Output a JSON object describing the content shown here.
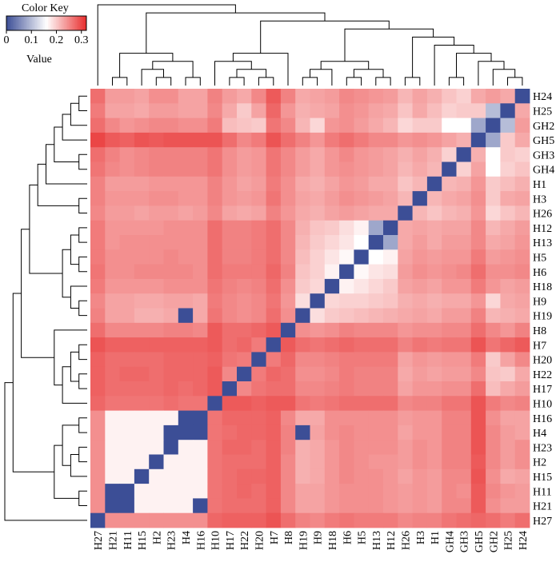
{
  "chart_data": {
    "type": "heatmap",
    "title": "",
    "color_key": {
      "title": "Color Key",
      "xlabel": "Value",
      "ticks": [
        "0",
        "0.1",
        "0.2",
        "0.3"
      ],
      "range": [
        0,
        0.32
      ],
      "colors": {
        "low": "#3c4e96",
        "mid": "#ffffff",
        "high": "#e82c2c"
      }
    },
    "col_labels": [
      "H27",
      "H21",
      "H11",
      "H15",
      "H2",
      "H23",
      "H4",
      "H16",
      "H10",
      "H17",
      "H22",
      "H20",
      "H7",
      "H8",
      "H19",
      "H9",
      "H18",
      "H6",
      "H5",
      "H13",
      "H12",
      "H26",
      "H3",
      "H1",
      "GH4",
      "GH3",
      "GH5",
      "GH2",
      "H25",
      "H24"
    ],
    "row_labels": [
      "H24",
      "H25",
      "GH2",
      "GH5",
      "GH3",
      "GH4",
      "H1",
      "H3",
      "H26",
      "H12",
      "H13",
      "H5",
      "H6",
      "H18",
      "H9",
      "H19",
      "H8",
      "H7",
      "H20",
      "H22",
      "H17",
      "H10",
      "H16",
      "H4",
      "H23",
      "H2",
      "H15",
      "H11",
      "H21",
      "H27"
    ],
    "values": [
      [
        0.27,
        0.235,
        0.235,
        0.23,
        0.245,
        0.245,
        0.23,
        0.23,
        0.255,
        0.235,
        0.225,
        0.25,
        0.285,
        0.255,
        0.225,
        0.23,
        0.235,
        0.25,
        0.245,
        0.24,
        0.235,
        0.215,
        0.23,
        0.22,
        0.205,
        0.195,
        0.225,
        0.235,
        0.225,
        0.0
      ],
      [
        0.26,
        0.23,
        0.23,
        0.225,
        0.235,
        0.235,
        0.23,
        0.23,
        0.25,
        0.225,
        0.2,
        0.23,
        0.275,
        0.24,
        0.22,
        0.225,
        0.23,
        0.245,
        0.24,
        0.23,
        0.225,
        0.205,
        0.225,
        0.21,
        0.195,
        0.2,
        0.2,
        0.1,
        0.0,
        0.225
      ],
      [
        0.27,
        0.25,
        0.24,
        0.245,
        0.25,
        0.25,
        0.245,
        0.245,
        0.26,
        0.21,
        0.205,
        0.2,
        0.265,
        0.25,
        0.215,
        0.19,
        0.24,
        0.245,
        0.235,
        0.225,
        0.215,
        0.19,
        0.2,
        0.2,
        0.16,
        0.16,
        0.08,
        0.0,
        0.1,
        0.235
      ],
      [
        0.3,
        0.285,
        0.28,
        0.29,
        0.285,
        0.29,
        0.29,
        0.29,
        0.29,
        0.27,
        0.25,
        0.26,
        0.29,
        0.27,
        0.255,
        0.24,
        0.26,
        0.27,
        0.26,
        0.25,
        0.25,
        0.24,
        0.245,
        0.24,
        0.23,
        0.22,
        0.0,
        0.08,
        0.2,
        0.225
      ],
      [
        0.27,
        0.255,
        0.245,
        0.25,
        0.255,
        0.255,
        0.255,
        0.255,
        0.265,
        0.245,
        0.235,
        0.24,
        0.265,
        0.25,
        0.235,
        0.225,
        0.24,
        0.25,
        0.24,
        0.235,
        0.23,
        0.22,
        0.23,
        0.22,
        0.195,
        0.0,
        0.22,
        0.16,
        0.2,
        0.195
      ],
      [
        0.265,
        0.25,
        0.245,
        0.25,
        0.255,
        0.255,
        0.255,
        0.255,
        0.265,
        0.245,
        0.235,
        0.24,
        0.265,
        0.25,
        0.235,
        0.225,
        0.24,
        0.245,
        0.24,
        0.235,
        0.23,
        0.215,
        0.225,
        0.215,
        0.0,
        0.195,
        0.23,
        0.16,
        0.195,
        0.205
      ],
      [
        0.255,
        0.235,
        0.235,
        0.235,
        0.24,
        0.24,
        0.24,
        0.24,
        0.255,
        0.24,
        0.23,
        0.235,
        0.26,
        0.245,
        0.225,
        0.22,
        0.23,
        0.24,
        0.235,
        0.225,
        0.225,
        0.205,
        0.215,
        0.0,
        0.215,
        0.22,
        0.24,
        0.2,
        0.21,
        0.22
      ],
      [
        0.255,
        0.24,
        0.24,
        0.24,
        0.245,
        0.245,
        0.24,
        0.24,
        0.255,
        0.24,
        0.235,
        0.24,
        0.265,
        0.245,
        0.23,
        0.225,
        0.235,
        0.245,
        0.24,
        0.235,
        0.23,
        0.215,
        0.0,
        0.215,
        0.225,
        0.23,
        0.245,
        0.2,
        0.225,
        0.23
      ],
      [
        0.25,
        0.235,
        0.235,
        0.23,
        0.235,
        0.235,
        0.23,
        0.235,
        0.25,
        0.23,
        0.225,
        0.23,
        0.255,
        0.24,
        0.225,
        0.22,
        0.23,
        0.235,
        0.23,
        0.225,
        0.225,
        0.0,
        0.215,
        0.205,
        0.215,
        0.22,
        0.24,
        0.19,
        0.205,
        0.215
      ],
      [
        0.26,
        0.24,
        0.24,
        0.24,
        0.24,
        0.245,
        0.245,
        0.245,
        0.27,
        0.255,
        0.255,
        0.26,
        0.27,
        0.25,
        0.22,
        0.205,
        0.2,
        0.185,
        0.17,
        0.08,
        0.0,
        0.225,
        0.23,
        0.225,
        0.23,
        0.23,
        0.25,
        0.215,
        0.225,
        0.235
      ],
      [
        0.26,
        0.24,
        0.245,
        0.245,
        0.245,
        0.245,
        0.245,
        0.245,
        0.27,
        0.255,
        0.255,
        0.26,
        0.27,
        0.25,
        0.215,
        0.2,
        0.19,
        0.18,
        0.16,
        0.0,
        0.08,
        0.225,
        0.235,
        0.225,
        0.235,
        0.235,
        0.25,
        0.225,
        0.23,
        0.24
      ],
      [
        0.26,
        0.245,
        0.245,
        0.245,
        0.245,
        0.25,
        0.245,
        0.245,
        0.27,
        0.255,
        0.255,
        0.26,
        0.27,
        0.25,
        0.21,
        0.195,
        0.18,
        0.165,
        0.0,
        0.16,
        0.17,
        0.23,
        0.24,
        0.235,
        0.24,
        0.24,
        0.26,
        0.235,
        0.24,
        0.245
      ],
      [
        0.265,
        0.245,
        0.245,
        0.25,
        0.25,
        0.25,
        0.25,
        0.245,
        0.27,
        0.26,
        0.26,
        0.26,
        0.275,
        0.255,
        0.205,
        0.195,
        0.17,
        0.0,
        0.165,
        0.18,
        0.185,
        0.235,
        0.245,
        0.24,
        0.245,
        0.25,
        0.27,
        0.245,
        0.245,
        0.25
      ],
      [
        0.26,
        0.24,
        0.24,
        0.24,
        0.24,
        0.245,
        0.245,
        0.245,
        0.265,
        0.255,
        0.25,
        0.255,
        0.27,
        0.245,
        0.2,
        0.19,
        0.0,
        0.17,
        0.18,
        0.19,
        0.2,
        0.23,
        0.235,
        0.23,
        0.24,
        0.24,
        0.26,
        0.24,
        0.23,
        0.235
      ],
      [
        0.25,
        0.23,
        0.23,
        0.225,
        0.225,
        0.23,
        0.23,
        0.225,
        0.26,
        0.25,
        0.245,
        0.25,
        0.265,
        0.24,
        0.185,
        0.0,
        0.19,
        0.195,
        0.195,
        0.2,
        0.205,
        0.22,
        0.225,
        0.22,
        0.225,
        0.225,
        0.24,
        0.19,
        0.225,
        0.23
      ],
      [
        0.255,
        0.23,
        0.23,
        0.22,
        0.22,
        0.225,
        0.0,
        0.225,
        0.265,
        0.25,
        0.245,
        0.25,
        0.27,
        0.245,
        0.0,
        0.185,
        0.2,
        0.205,
        0.21,
        0.215,
        0.22,
        0.225,
        0.23,
        0.225,
        0.235,
        0.235,
        0.255,
        0.215,
        0.22,
        0.225
      ],
      [
        0.27,
        0.25,
        0.25,
        0.25,
        0.25,
        0.255,
        0.255,
        0.25,
        0.285,
        0.27,
        0.27,
        0.275,
        0.285,
        0.0,
        0.245,
        0.24,
        0.245,
        0.255,
        0.25,
        0.25,
        0.25,
        0.24,
        0.245,
        0.245,
        0.25,
        0.25,
        0.27,
        0.25,
        0.24,
        0.255
      ],
      [
        0.29,
        0.28,
        0.28,
        0.28,
        0.28,
        0.28,
        0.28,
        0.28,
        0.285,
        0.27,
        0.275,
        0.26,
        0.0,
        0.285,
        0.27,
        0.265,
        0.27,
        0.275,
        0.27,
        0.27,
        0.27,
        0.255,
        0.265,
        0.26,
        0.265,
        0.265,
        0.29,
        0.265,
        0.275,
        0.285
      ],
      [
        0.28,
        0.27,
        0.27,
        0.27,
        0.27,
        0.275,
        0.275,
        0.275,
        0.28,
        0.265,
        0.26,
        0.0,
        0.26,
        0.275,
        0.25,
        0.25,
        0.255,
        0.26,
        0.26,
        0.26,
        0.26,
        0.23,
        0.24,
        0.235,
        0.24,
        0.24,
        0.26,
        0.2,
        0.23,
        0.25
      ],
      [
        0.28,
        0.27,
        0.275,
        0.275,
        0.27,
        0.275,
        0.275,
        0.275,
        0.285,
        0.25,
        0.0,
        0.26,
        0.275,
        0.27,
        0.245,
        0.245,
        0.25,
        0.26,
        0.255,
        0.255,
        0.255,
        0.225,
        0.235,
        0.23,
        0.235,
        0.235,
        0.25,
        0.205,
        0.2,
        0.225
      ],
      [
        0.28,
        0.27,
        0.27,
        0.27,
        0.27,
        0.275,
        0.27,
        0.275,
        0.285,
        0.0,
        0.25,
        0.265,
        0.27,
        0.27,
        0.25,
        0.25,
        0.255,
        0.26,
        0.255,
        0.255,
        0.255,
        0.23,
        0.24,
        0.24,
        0.245,
        0.245,
        0.27,
        0.21,
        0.225,
        0.235
      ],
      [
        0.275,
        0.265,
        0.265,
        0.265,
        0.265,
        0.27,
        0.265,
        0.265,
        0.0,
        0.285,
        0.285,
        0.28,
        0.285,
        0.285,
        0.265,
        0.26,
        0.265,
        0.27,
        0.27,
        0.27,
        0.27,
        0.25,
        0.255,
        0.255,
        0.265,
        0.265,
        0.29,
        0.26,
        0.25,
        0.255
      ],
      [
        0.245,
        0.17,
        0.17,
        0.17,
        0.17,
        0.17,
        0.0,
        0.0,
        0.265,
        0.275,
        0.275,
        0.275,
        0.28,
        0.25,
        0.225,
        0.225,
        0.245,
        0.245,
        0.245,
        0.245,
        0.245,
        0.235,
        0.24,
        0.24,
        0.255,
        0.255,
        0.29,
        0.245,
        0.23,
        0.23
      ],
      [
        0.245,
        0.17,
        0.17,
        0.17,
        0.17,
        0.0,
        0.0,
        0.0,
        0.265,
        0.27,
        0.275,
        0.275,
        0.28,
        0.255,
        0.0,
        0.23,
        0.245,
        0.25,
        0.245,
        0.245,
        0.245,
        0.23,
        0.24,
        0.24,
        0.255,
        0.255,
        0.29,
        0.25,
        0.235,
        0.23
      ],
      [
        0.245,
        0.17,
        0.17,
        0.17,
        0.17,
        0.0,
        0.17,
        0.17,
        0.265,
        0.275,
        0.275,
        0.27,
        0.28,
        0.255,
        0.22,
        0.225,
        0.24,
        0.25,
        0.245,
        0.245,
        0.245,
        0.235,
        0.245,
        0.24,
        0.255,
        0.255,
        0.29,
        0.25,
        0.235,
        0.245
      ],
      [
        0.245,
        0.17,
        0.17,
        0.17,
        0.0,
        0.17,
        0.17,
        0.17,
        0.265,
        0.27,
        0.27,
        0.27,
        0.28,
        0.25,
        0.22,
        0.225,
        0.24,
        0.25,
        0.245,
        0.24,
        0.24,
        0.235,
        0.245,
        0.24,
        0.255,
        0.255,
        0.285,
        0.25,
        0.235,
        0.245
      ],
      [
        0.245,
        0.17,
        0.17,
        0.0,
        0.17,
        0.17,
        0.17,
        0.17,
        0.265,
        0.27,
        0.275,
        0.275,
        0.28,
        0.25,
        0.22,
        0.225,
        0.24,
        0.25,
        0.245,
        0.245,
        0.24,
        0.23,
        0.24,
        0.235,
        0.25,
        0.25,
        0.29,
        0.245,
        0.225,
        0.23
      ],
      [
        0.245,
        0.0,
        0.0,
        0.17,
        0.17,
        0.17,
        0.17,
        0.17,
        0.265,
        0.27,
        0.275,
        0.27,
        0.28,
        0.25,
        0.23,
        0.23,
        0.24,
        0.245,
        0.245,
        0.245,
        0.24,
        0.235,
        0.24,
        0.235,
        0.25,
        0.245,
        0.285,
        0.25,
        0.24,
        0.235
      ],
      [
        0.245,
        0.0,
        0.0,
        0.17,
        0.17,
        0.17,
        0.17,
        0.0,
        0.265,
        0.27,
        0.27,
        0.27,
        0.28,
        0.25,
        0.23,
        0.23,
        0.24,
        0.245,
        0.245,
        0.245,
        0.24,
        0.235,
        0.24,
        0.235,
        0.25,
        0.25,
        0.285,
        0.245,
        0.235,
        0.235
      ],
      [
        0.0,
        0.245,
        0.245,
        0.245,
        0.245,
        0.245,
        0.245,
        0.245,
        0.275,
        0.28,
        0.28,
        0.28,
        0.29,
        0.27,
        0.255,
        0.25,
        0.26,
        0.265,
        0.26,
        0.26,
        0.26,
        0.25,
        0.255,
        0.255,
        0.265,
        0.27,
        0.275,
        0.27,
        0.26,
        0.27
      ]
    ],
    "diagonal_value": 0,
    "diagonal_color": "#3c4e96"
  }
}
